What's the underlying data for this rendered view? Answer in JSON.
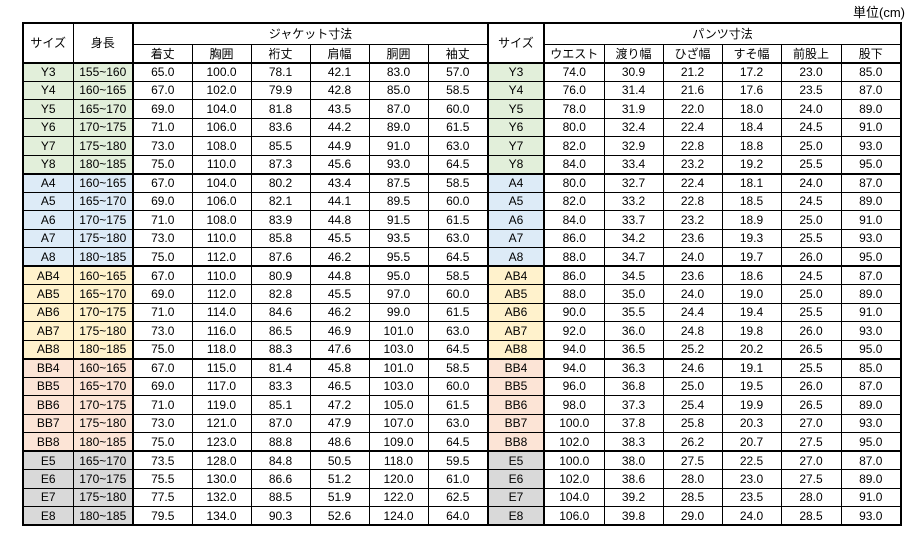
{
  "unit_label": "単位(cm)",
  "table": {
    "headers": {
      "size": "サイズ",
      "height": "身長",
      "jacket_group": "ジャケット寸法",
      "jacket_cols": [
        "着丈",
        "胸囲",
        "裄丈",
        "肩幅",
        "胴囲",
        "袖丈"
      ],
      "size_right": "サイズ",
      "pants_group": "パンツ寸法",
      "pants_cols": [
        "ウエスト",
        "渡り幅",
        "ひざ幅",
        "すそ幅",
        "前股上",
        "股下"
      ]
    },
    "groups": [
      {
        "name": "Y",
        "color": "#E2EFDA",
        "rows": [
          {
            "size": "Y3",
            "height": "155~160",
            "jacket": [
              "65.0",
              "100.0",
              "78.1",
              "42.1",
              "83.0",
              "57.0"
            ],
            "pants": [
              "74.0",
              "30.9",
              "21.2",
              "17.2",
              "23.0",
              "85.0"
            ]
          },
          {
            "size": "Y4",
            "height": "160~165",
            "jacket": [
              "67.0",
              "102.0",
              "79.9",
              "42.8",
              "85.0",
              "58.5"
            ],
            "pants": [
              "76.0",
              "31.4",
              "21.6",
              "17.6",
              "23.5",
              "87.0"
            ]
          },
          {
            "size": "Y5",
            "height": "165~170",
            "jacket": [
              "69.0",
              "104.0",
              "81.8",
              "43.5",
              "87.0",
              "60.0"
            ],
            "pants": [
              "78.0",
              "31.9",
              "22.0",
              "18.0",
              "24.0",
              "89.0"
            ]
          },
          {
            "size": "Y6",
            "height": "170~175",
            "jacket": [
              "71.0",
              "106.0",
              "83.6",
              "44.2",
              "89.0",
              "61.5"
            ],
            "pants": [
              "80.0",
              "32.4",
              "22.4",
              "18.4",
              "24.5",
              "91.0"
            ]
          },
          {
            "size": "Y7",
            "height": "175~180",
            "jacket": [
              "73.0",
              "108.0",
              "85.5",
              "44.9",
              "91.0",
              "63.0"
            ],
            "pants": [
              "82.0",
              "32.9",
              "22.8",
              "18.8",
              "25.0",
              "93.0"
            ]
          },
          {
            "size": "Y8",
            "height": "180~185",
            "jacket": [
              "75.0",
              "110.0",
              "87.3",
              "45.6",
              "93.0",
              "64.5"
            ],
            "pants": [
              "84.0",
              "33.4",
              "23.2",
              "19.2",
              "25.5",
              "95.0"
            ]
          }
        ]
      },
      {
        "name": "A",
        "color": "#DDEBF7",
        "rows": [
          {
            "size": "A4",
            "height": "160~165",
            "jacket": [
              "67.0",
              "104.0",
              "80.2",
              "43.4",
              "87.5",
              "58.5"
            ],
            "pants": [
              "80.0",
              "32.7",
              "22.4",
              "18.1",
              "24.0",
              "87.0"
            ]
          },
          {
            "size": "A5",
            "height": "165~170",
            "jacket": [
              "69.0",
              "106.0",
              "82.1",
              "44.1",
              "89.5",
              "60.0"
            ],
            "pants": [
              "82.0",
              "33.2",
              "22.8",
              "18.5",
              "24.5",
              "89.0"
            ]
          },
          {
            "size": "A6",
            "height": "170~175",
            "jacket": [
              "71.0",
              "108.0",
              "83.9",
              "44.8",
              "91.5",
              "61.5"
            ],
            "pants": [
              "84.0",
              "33.7",
              "23.2",
              "18.9",
              "25.0",
              "91.0"
            ]
          },
          {
            "size": "A7",
            "height": "175~180",
            "jacket": [
              "73.0",
              "110.0",
              "85.8",
              "45.5",
              "93.5",
              "63.0"
            ],
            "pants": [
              "86.0",
              "34.2",
              "23.6",
              "19.3",
              "25.5",
              "93.0"
            ]
          },
          {
            "size": "A8",
            "height": "180~185",
            "jacket": [
              "75.0",
              "112.0",
              "87.6",
              "46.2",
              "95.5",
              "64.5"
            ],
            "pants": [
              "88.0",
              "34.7",
              "24.0",
              "19.7",
              "26.0",
              "95.0"
            ]
          }
        ]
      },
      {
        "name": "AB",
        "color": "#FFF2CC",
        "rows": [
          {
            "size": "AB4",
            "height": "160~165",
            "jacket": [
              "67.0",
              "110.0",
              "80.9",
              "44.8",
              "95.0",
              "58.5"
            ],
            "pants": [
              "86.0",
              "34.5",
              "23.6",
              "18.6",
              "24.5",
              "87.0"
            ]
          },
          {
            "size": "AB5",
            "height": "165~170",
            "jacket": [
              "69.0",
              "112.0",
              "82.8",
              "45.5",
              "97.0",
              "60.0"
            ],
            "pants": [
              "88.0",
              "35.0",
              "24.0",
              "19.0",
              "25.0",
              "89.0"
            ]
          },
          {
            "size": "AB6",
            "height": "170~175",
            "jacket": [
              "71.0",
              "114.0",
              "84.6",
              "46.2",
              "99.0",
              "61.5"
            ],
            "pants": [
              "90.0",
              "35.5",
              "24.4",
              "19.4",
              "25.5",
              "91.0"
            ]
          },
          {
            "size": "AB7",
            "height": "175~180",
            "jacket": [
              "73.0",
              "116.0",
              "86.5",
              "46.9",
              "101.0",
              "63.0"
            ],
            "pants": [
              "92.0",
              "36.0",
              "24.8",
              "19.8",
              "26.0",
              "93.0"
            ]
          },
          {
            "size": "AB8",
            "height": "180~185",
            "jacket": [
              "75.0",
              "118.0",
              "88.3",
              "47.6",
              "103.0",
              "64.5"
            ],
            "pants": [
              "94.0",
              "36.5",
              "25.2",
              "20.2",
              "26.5",
              "95.0"
            ]
          }
        ]
      },
      {
        "name": "BB",
        "color": "#FCE4D6",
        "rows": [
          {
            "size": "BB4",
            "height": "160~165",
            "jacket": [
              "67.0",
              "115.0",
              "81.4",
              "45.8",
              "101.0",
              "58.5"
            ],
            "pants": [
              "94.0",
              "36.3",
              "24.6",
              "19.1",
              "25.5",
              "85.0"
            ]
          },
          {
            "size": "BB5",
            "height": "165~170",
            "jacket": [
              "69.0",
              "117.0",
              "83.3",
              "46.5",
              "103.0",
              "60.0"
            ],
            "pants": [
              "96.0",
              "36.8",
              "25.0",
              "19.5",
              "26.0",
              "87.0"
            ]
          },
          {
            "size": "BB6",
            "height": "170~175",
            "jacket": [
              "71.0",
              "119.0",
              "85.1",
              "47.2",
              "105.0",
              "61.5"
            ],
            "pants": [
              "98.0",
              "37.3",
              "25.4",
              "19.9",
              "26.5",
              "89.0"
            ]
          },
          {
            "size": "BB7",
            "height": "175~180",
            "jacket": [
              "73.0",
              "121.0",
              "87.0",
              "47.9",
              "107.0",
              "63.0"
            ],
            "pants": [
              "100.0",
              "37.8",
              "25.8",
              "20.3",
              "27.0",
              "93.0"
            ]
          },
          {
            "size": "BB8",
            "height": "180~185",
            "jacket": [
              "75.0",
              "123.0",
              "88.8",
              "48.6",
              "109.0",
              "64.5"
            ],
            "pants": [
              "102.0",
              "38.3",
              "26.2",
              "20.7",
              "27.5",
              "95.0"
            ]
          }
        ]
      },
      {
        "name": "E",
        "color": "#D9D9D9",
        "rows": [
          {
            "size": "E5",
            "height": "165~170",
            "jacket": [
              "73.5",
              "128.0",
              "84.8",
              "50.5",
              "118.0",
              "59.5"
            ],
            "pants": [
              "100.0",
              "38.0",
              "27.5",
              "22.5",
              "27.0",
              "87.0"
            ]
          },
          {
            "size": "E6",
            "height": "170~175",
            "jacket": [
              "75.5",
              "130.0",
              "86.6",
              "51.2",
              "120.0",
              "61.0"
            ],
            "pants": [
              "102.0",
              "38.6",
              "28.0",
              "23.0",
              "27.5",
              "89.0"
            ]
          },
          {
            "size": "E7",
            "height": "175~180",
            "jacket": [
              "77.5",
              "132.0",
              "88.5",
              "51.9",
              "122.0",
              "62.5"
            ],
            "pants": [
              "104.0",
              "39.2",
              "28.5",
              "23.5",
              "28.0",
              "91.0"
            ]
          },
          {
            "size": "E8",
            "height": "180~185",
            "jacket": [
              "79.5",
              "134.0",
              "90.3",
              "52.6",
              "124.0",
              "64.0"
            ],
            "pants": [
              "106.0",
              "39.8",
              "29.0",
              "24.0",
              "28.5",
              "93.0"
            ]
          }
        ]
      }
    ]
  }
}
